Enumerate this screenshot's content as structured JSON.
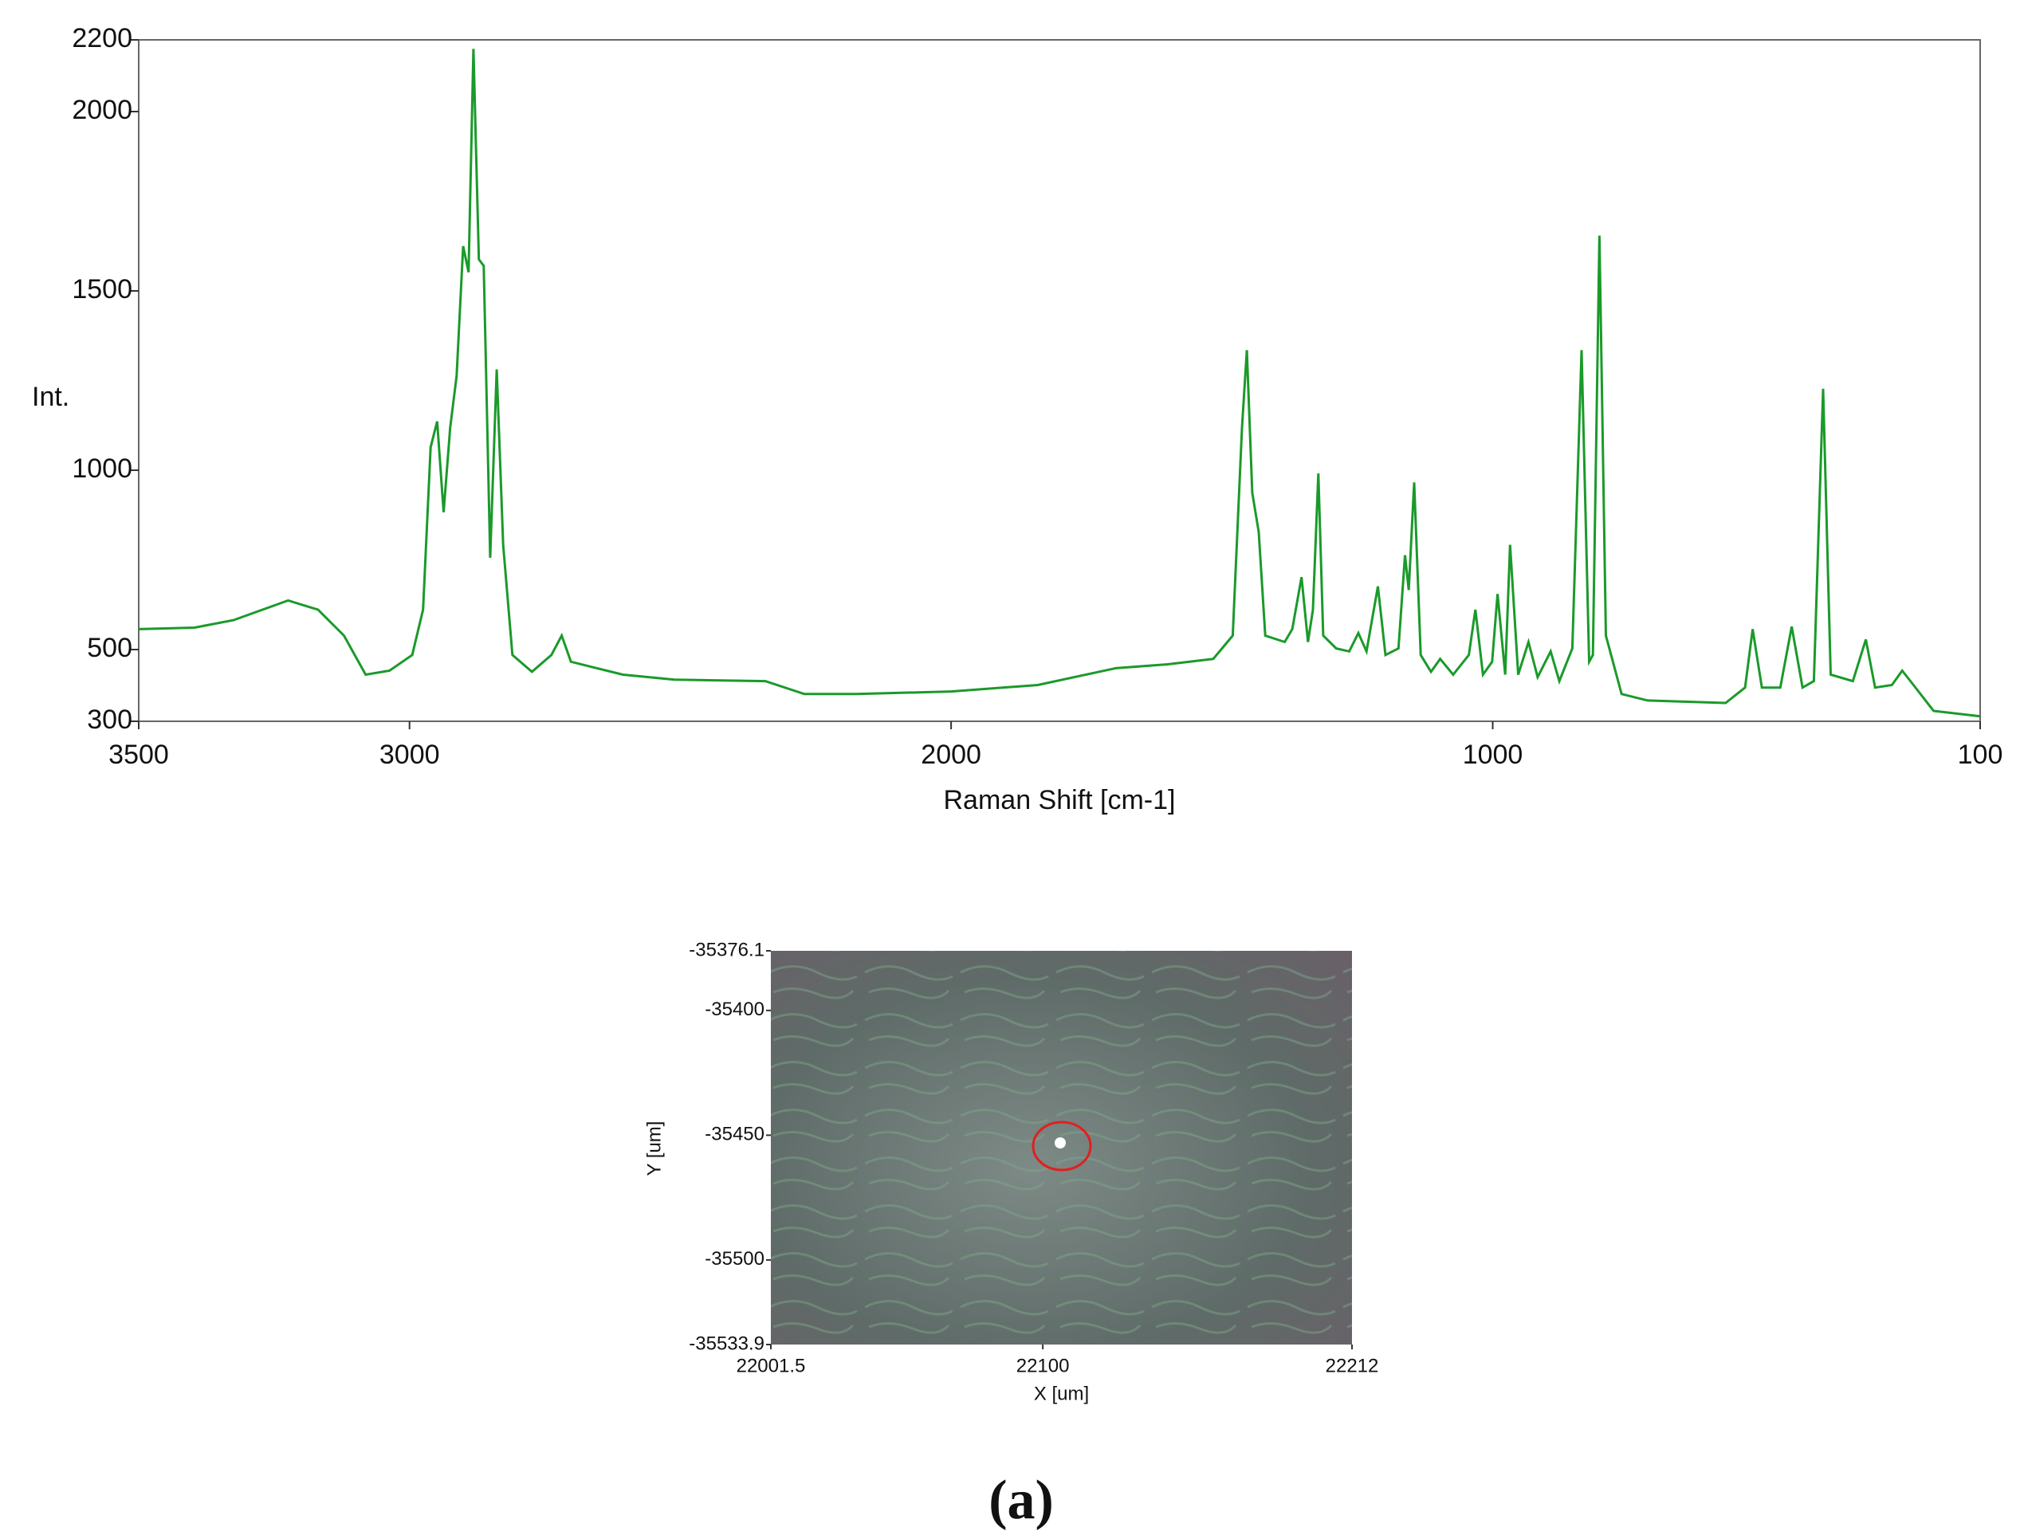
{
  "chart_data": [
    {
      "type": "line",
      "xlabel": "Raman Shift [cm-1]",
      "ylabel": "Int.",
      "xlim": [
        3500,
        100
      ],
      "ylim": [
        300,
        2200
      ],
      "xticks": [
        3500,
        3000,
        2000,
        1000,
        100
      ],
      "yticks": [
        300,
        500,
        1000,
        1500,
        2000,
        2200
      ],
      "series": [
        {
          "color": "#1a9a2a",
          "x": [
            3500,
            3397,
            3325,
            3224,
            3169,
            3121,
            3081,
            3037,
            2995,
            2975,
            2961,
            2949,
            2937,
            2925,
            2913,
            2901,
            2891,
            2882,
            2872,
            2863,
            2851,
            2839,
            2827,
            2810,
            2774,
            2738,
            2719,
            2702,
            2654,
            2606,
            2511,
            2343,
            2271,
            2175,
            2000,
            1840,
            1696,
            1600,
            1516,
            1480,
            1463,
            1454,
            1444,
            1432,
            1420,
            1384,
            1370,
            1353,
            1341,
            1332,
            1322,
            1313,
            1289,
            1265,
            1248,
            1233,
            1212,
            1198,
            1174,
            1162,
            1155,
            1145,
            1133,
            1114,
            1097,
            1073,
            1044,
            1032,
            1018,
            1001,
            991,
            977,
            968,
            953,
            934,
            917,
            893,
            877,
            853,
            836,
            822,
            815,
            803,
            791,
            762,
            714,
            570,
            534,
            520,
            503,
            469,
            448,
            428,
            407,
            390,
            376,
            335,
            311,
            294,
            263,
            244,
            223,
            186,
            100
          ],
          "values": [
            557,
            561,
            582,
            637,
            611,
            539,
            430,
            441,
            485,
            611,
            1064,
            1136,
            883,
            1118,
            1263,
            1625,
            1552,
            2175,
            1588,
            1570,
            756,
            1281,
            792,
            485,
            438,
            485,
            539,
            466,
            448,
            430,
            416,
            412,
            376,
            376,
            383,
            401,
            448,
            459,
            474,
            539,
            1118,
            1335,
            937,
            828,
            539,
            521,
            557,
            702,
            521,
            611,
            991,
            539,
            503,
            495,
            546,
            495,
            676,
            485,
            503,
            763,
            666,
            966,
            485,
            438,
            474,
            430,
            485,
            611,
            430,
            466,
            655,
            430,
            792,
            430,
            521,
            423,
            495,
            412,
            503,
            1335,
            466,
            485,
            1654,
            539,
            376,
            358,
            351,
            394,
            557,
            394,
            394,
            564,
            394,
            412,
            1227,
            430,
            412,
            528,
            394,
            401,
            441,
            401,
            329,
            314
          ]
        }
      ]
    },
    {
      "type": "image",
      "xlabel": "X [um]",
      "ylabel": "Y [um]",
      "xlim": [
        22001.5,
        22212
      ],
      "ylim": [
        -35533.9,
        -35376.1
      ],
      "xticks": [
        22001.5,
        22100,
        22212
      ],
      "yticks": [
        -35376.1,
        -35400,
        -35450,
        -35500,
        -35533.9
      ]
    }
  ],
  "caption": "(a)"
}
